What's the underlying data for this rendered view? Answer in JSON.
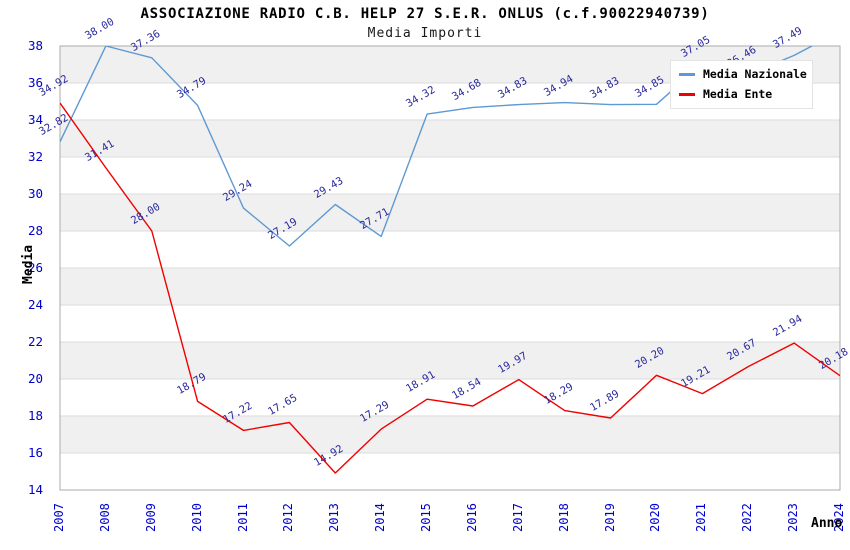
{
  "title": "ASSOCIAZIONE RADIO C.B. HELP 27 S.E.R. ONLUS (c.f.90022940739)",
  "subtitle": "Media Importi",
  "axes": {
    "y_label": "Media",
    "x_label": "Anno",
    "y_ticks": [
      14,
      16,
      18,
      20,
      22,
      24,
      26,
      28,
      30,
      32,
      34,
      36,
      38
    ]
  },
  "colors": {
    "tick_label": "#0000CC",
    "value_label": "#28289B",
    "band_gray": "#F0F0F0",
    "gridline": "#DBDBDB",
    "plot_border": "#ABABAB",
    "series_nazionale": "#5D99D2",
    "series_ente": "#F10000"
  },
  "legend": {
    "position": "top-right",
    "entries": [
      "Media Nazionale",
      "Media Ente"
    ]
  },
  "chart_data": {
    "type": "line",
    "x": [
      "2007",
      "2008",
      "2009",
      "2010",
      "2011",
      "2012",
      "2013",
      "2014",
      "2015",
      "2016",
      "2017",
      "2018",
      "2019",
      "2020",
      "2021",
      "2022",
      "2023",
      "2024"
    ],
    "ylim": [
      14,
      38
    ],
    "grid": "horizontal alternating bands every 2 units",
    "legend_position": "top-right overlapping plot",
    "series": [
      {
        "name": "Media Nazionale",
        "color": "#5D99D2",
        "values": [
          32.82,
          38.0,
          37.36,
          34.79,
          29.24,
          27.19,
          29.43,
          27.71,
          34.32,
          34.68,
          34.83,
          34.94,
          34.83,
          34.85,
          37.05,
          36.46,
          37.49,
          38.8
        ],
        "labels": [
          "32.82",
          "38.00",
          "37.36",
          "34.79",
          "29.24",
          "27.19",
          "29.43",
          "27.71",
          "34.32",
          "34.68",
          "34.83",
          "34.94",
          "34.83",
          "34.85",
          "37.05",
          "36.46",
          "37.49",
          ""
        ]
      },
      {
        "name": "Media Ente",
        "color": "#F10000",
        "values": [
          34.92,
          31.41,
          28.0,
          18.79,
          17.22,
          17.65,
          14.92,
          17.29,
          18.91,
          18.54,
          19.97,
          18.29,
          17.89,
          20.2,
          19.21,
          20.67,
          21.94,
          20.18
        ],
        "labels": [
          "34.92",
          "31.41",
          "28.00",
          "18.79",
          "17.22",
          "17.65",
          "14.92",
          "17.29",
          "18.91",
          "18.54",
          "19.97",
          "18.29",
          "17.89",
          "20.20",
          "19.21",
          "20.67",
          "21.94",
          "20.18"
        ]
      }
    ]
  }
}
